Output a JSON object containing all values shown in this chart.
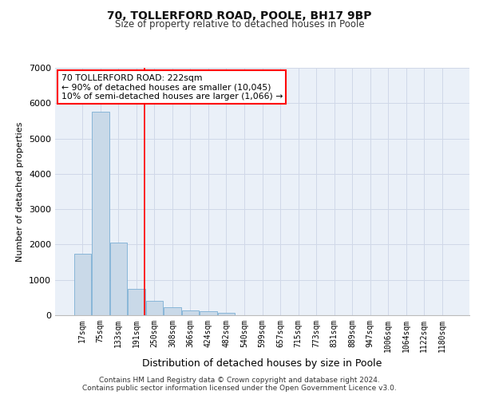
{
  "title1": "70, TOLLERFORD ROAD, POOLE, BH17 9BP",
  "title2": "Size of property relative to detached houses in Poole",
  "xlabel": "Distribution of detached houses by size in Poole",
  "ylabel": "Number of detached properties",
  "footnote1": "Contains HM Land Registry data © Crown copyright and database right 2024.",
  "footnote2": "Contains public sector information licensed under the Open Government Licence v3.0.",
  "annotation_line1": "70 TOLLERFORD ROAD: 222sqm",
  "annotation_line2": "← 90% of detached houses are smaller (10,045)",
  "annotation_line3": "10% of semi-detached houses are larger (1,066) →",
  "bar_labels": [
    "17sqm",
    "75sqm",
    "133sqm",
    "191sqm",
    "250sqm",
    "308sqm",
    "366sqm",
    "424sqm",
    "482sqm",
    "540sqm",
    "599sqm",
    "657sqm",
    "715sqm",
    "773sqm",
    "831sqm",
    "889sqm",
    "947sqm",
    "1006sqm",
    "1064sqm",
    "1122sqm",
    "1180sqm"
  ],
  "bar_values": [
    1750,
    5750,
    2050,
    750,
    400,
    230,
    145,
    105,
    60,
    0,
    0,
    0,
    0,
    0,
    0,
    0,
    0,
    0,
    0,
    0,
    0
  ],
  "bar_color": "#c9d9e8",
  "bar_edge_color": "#7bafd4",
  "grid_color": "#d0d8e8",
  "background_color": "#eaf0f8",
  "red_line_x": 3.45,
  "ylim": [
    0,
    7000
  ],
  "yticks": [
    0,
    1000,
    2000,
    3000,
    4000,
    5000,
    6000,
    7000
  ]
}
